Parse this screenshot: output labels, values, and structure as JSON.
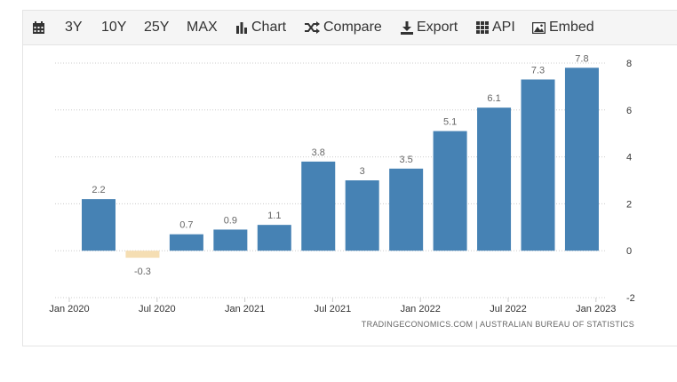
{
  "toolbar": {
    "items": [
      {
        "label": "3Y"
      },
      {
        "label": "10Y"
      },
      {
        "label": "25Y"
      },
      {
        "label": "MAX"
      },
      {
        "label": "Chart"
      },
      {
        "label": "Compare"
      },
      {
        "label": "Export"
      },
      {
        "label": "API"
      },
      {
        "label": "Embed"
      }
    ]
  },
  "footer": {
    "source": "TRADINGECONOMICS.COM  |  AUSTRALIAN BUREAU OF STATISTICS"
  },
  "colors": {
    "positive_bar": "#4682b4",
    "negative_bar": "#f5deb3",
    "grid": "#cccccc",
    "label": "#666666"
  },
  "chart_data": {
    "type": "bar",
    "categories": [
      "Q1 2020",
      "Q2 2020",
      "Q3 2020",
      "Q4 2020",
      "Q1 2021",
      "Q2 2021",
      "Q3 2021",
      "Q4 2021",
      "Q1 2022",
      "Q2 2022",
      "Q3 2022",
      "Q4 2022"
    ],
    "values": [
      2.2,
      -0.3,
      0.7,
      0.9,
      1.1,
      3.8,
      3.0,
      3.5,
      5.1,
      6.1,
      7.3,
      7.8
    ],
    "data_labels": [
      "2.2",
      "-0.3",
      "0.7",
      "0.9",
      "1.1",
      "3.8",
      "3",
      "3.5",
      "5.1",
      "6.1",
      "7.3",
      "7.8"
    ],
    "x_ticks": [
      "Jan 2020",
      "Jul 2020",
      "Jan 2021",
      "Jul 2021",
      "Jan 2022",
      "Jul 2022",
      "Jan 2023"
    ],
    "y_ticks": [
      "8",
      "6",
      "4",
      "2",
      "0",
      "-2"
    ],
    "ylim": [
      -2,
      8
    ],
    "y_axis_side": "right",
    "grid": true,
    "title": "",
    "xlabel": "",
    "ylabel": ""
  }
}
